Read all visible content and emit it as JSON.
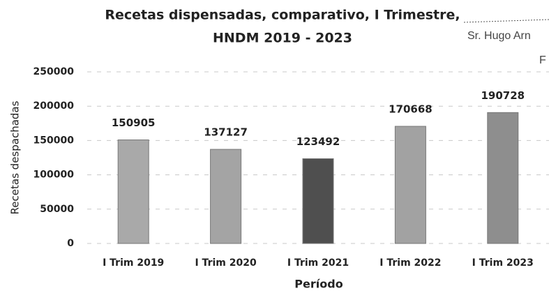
{
  "chart_data": {
    "type": "bar",
    "title": [
      "Recetas dispensadas, comparativo, I Trimestre,",
      "HNDM 2019 - 2023"
    ],
    "categories": [
      "I Trim 2019",
      "I Trim 2020",
      "I Trim 2021",
      "I Trim 2022",
      "I Trim 2023"
    ],
    "values": [
      150905,
      137127,
      123492,
      170668,
      190728
    ],
    "colors": [
      "#a9a9a9",
      "#a4a4a4",
      "#4f4f4f",
      "#a2a2a2",
      "#8e8e8e"
    ],
    "ylim": [
      0,
      250000
    ],
    "yticks": [
      0,
      50000,
      100000,
      150000,
      200000,
      250000
    ],
    "ylabel": "Recetas despachadas",
    "xlabel": "Período",
    "grid": true,
    "annotations": [
      "Sr. Hugo Arn",
      "F"
    ]
  }
}
